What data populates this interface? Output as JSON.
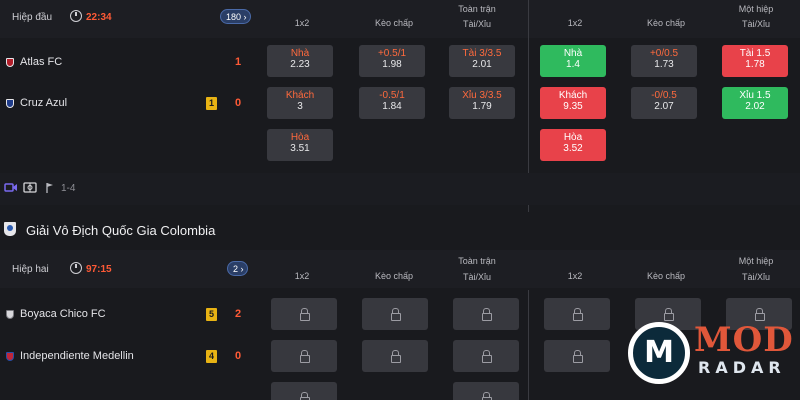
{
  "match1": {
    "phase": "Hiệp đầu",
    "time": "22:34",
    "more_markets": "180",
    "headers": {
      "full_time_group": "Toàn trận",
      "half_group": "Một hiệp",
      "col_1x2": "1x2",
      "col_handicap": "Kèo chấp",
      "col_over_under": "Tài/Xỉu"
    },
    "home": {
      "name": "Atlas FC",
      "score": "1",
      "cards": ""
    },
    "away": {
      "name": "Cruz Azul",
      "score": "0",
      "cards": "1"
    },
    "full_time": {
      "x12": [
        {
          "k": "Nhà",
          "v": "2.23"
        },
        {
          "k": "Khách",
          "v": "3"
        },
        {
          "k": "Hòa",
          "v": "3.51"
        }
      ],
      "handicap": [
        {
          "k": "+0.5/1",
          "v": "1.98"
        },
        {
          "k": "-0.5/1",
          "v": "1.84"
        }
      ],
      "over_under": [
        {
          "k": "Tài 3/3.5",
          "v": "2.01"
        },
        {
          "k": "Xỉu 3/3.5",
          "v": "1.79"
        }
      ]
    },
    "half": {
      "x12": [
        {
          "k": "Nhà",
          "v": "1.4"
        },
        {
          "k": "Khách",
          "v": "9.35"
        },
        {
          "k": "Hòa",
          "v": "3.52"
        }
      ],
      "handicap": [
        {
          "k": "+0/0.5",
          "v": "1.73"
        },
        {
          "k": "-0/0.5",
          "v": "2.07"
        }
      ],
      "over_under": [
        {
          "k": "Tài 1.5",
          "v": "1.78"
        },
        {
          "k": "Xỉu 1.5",
          "v": "2.02"
        }
      ]
    },
    "footer_corners": "1-4",
    "colors": {
      "up": "#2fba5e",
      "down": "#e8424a",
      "accent": "#ff5a36"
    }
  },
  "league": {
    "name": "Giải Vô Địch Quốc Gia Colombia"
  },
  "match2": {
    "phase": "Hiệp hai",
    "time": "97:15",
    "more_markets": "2",
    "headers": {
      "full_time_group": "Toàn trận",
      "half_group": "Một hiệp",
      "col_1x2": "1x2",
      "col_handicap": "Kèo chấp",
      "col_over_under": "Tài/Xỉu"
    },
    "home": {
      "name": "Boyaca Chico FC",
      "score": "2",
      "cards": "5"
    },
    "away": {
      "name": "Independiente Medellin",
      "score": "0",
      "cards": "4"
    }
  },
  "watermark": {
    "line1": "MOD",
    "line2": "RADAR"
  }
}
